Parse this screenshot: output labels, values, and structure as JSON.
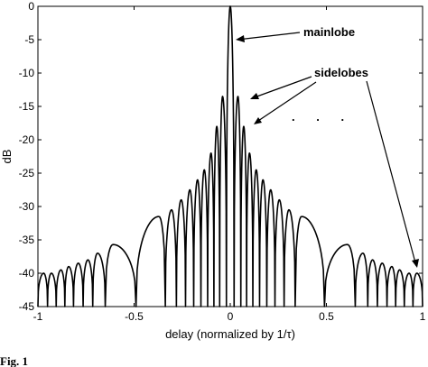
{
  "chart_data": {
    "type": "line",
    "title": "",
    "xlabel": "delay (normalized by 1/τ)",
    "ylabel": "dB",
    "xlim": [
      -1,
      1
    ],
    "ylim": [
      -45,
      0
    ],
    "x_ticks": [
      "-1",
      "-0.5",
      "0",
      "0.5",
      "1"
    ],
    "y_ticks": [
      "0",
      "-5",
      "-10",
      "-15",
      "-20",
      "-25",
      "-30",
      "-35",
      "-40",
      "-45"
    ],
    "grid": false,
    "annotations": {
      "mainlobe": "mainlobe",
      "sidelobes": "sidelobes",
      "ellipsis": ". . ."
    },
    "series": [
      {
        "envelope_peaks": [
          [
            -0.97,
            -40.0
          ],
          [
            -0.93,
            -40.0
          ],
          [
            -0.88,
            -39.5
          ],
          [
            -0.84,
            -39.0
          ],
          [
            -0.79,
            -38.5
          ],
          [
            -0.74,
            -38.0
          ],
          [
            -0.69,
            -37.0
          ],
          [
            -0.61,
            -35.7
          ],
          [
            -0.37,
            -31.5
          ],
          [
            -0.305,
            -30.5
          ],
          [
            -0.255,
            -29.0
          ],
          [
            -0.21,
            -27.5
          ],
          [
            -0.17,
            -26.0
          ],
          [
            -0.135,
            -24.5
          ],
          [
            -0.1,
            -22.0
          ],
          [
            -0.07,
            -18.0
          ],
          [
            -0.04,
            -13.5
          ],
          [
            0,
            0
          ],
          [
            0.04,
            -13.5
          ],
          [
            0.07,
            -18.0
          ],
          [
            0.1,
            -22.0
          ],
          [
            0.135,
            -24.5
          ],
          [
            0.17,
            -26.0
          ],
          [
            0.21,
            -27.5
          ],
          [
            0.255,
            -29.0
          ],
          [
            0.305,
            -30.5
          ],
          [
            0.37,
            -31.5
          ],
          [
            0.61,
            -35.7
          ],
          [
            0.69,
            -37.0
          ],
          [
            0.74,
            -38.0
          ],
          [
            0.79,
            -38.5
          ],
          [
            0.84,
            -39.0
          ],
          [
            0.88,
            -39.5
          ],
          [
            0.93,
            -40.0
          ],
          [
            0.97,
            -40.0
          ]
        ]
      }
    ]
  },
  "caption": "Fig. 1"
}
